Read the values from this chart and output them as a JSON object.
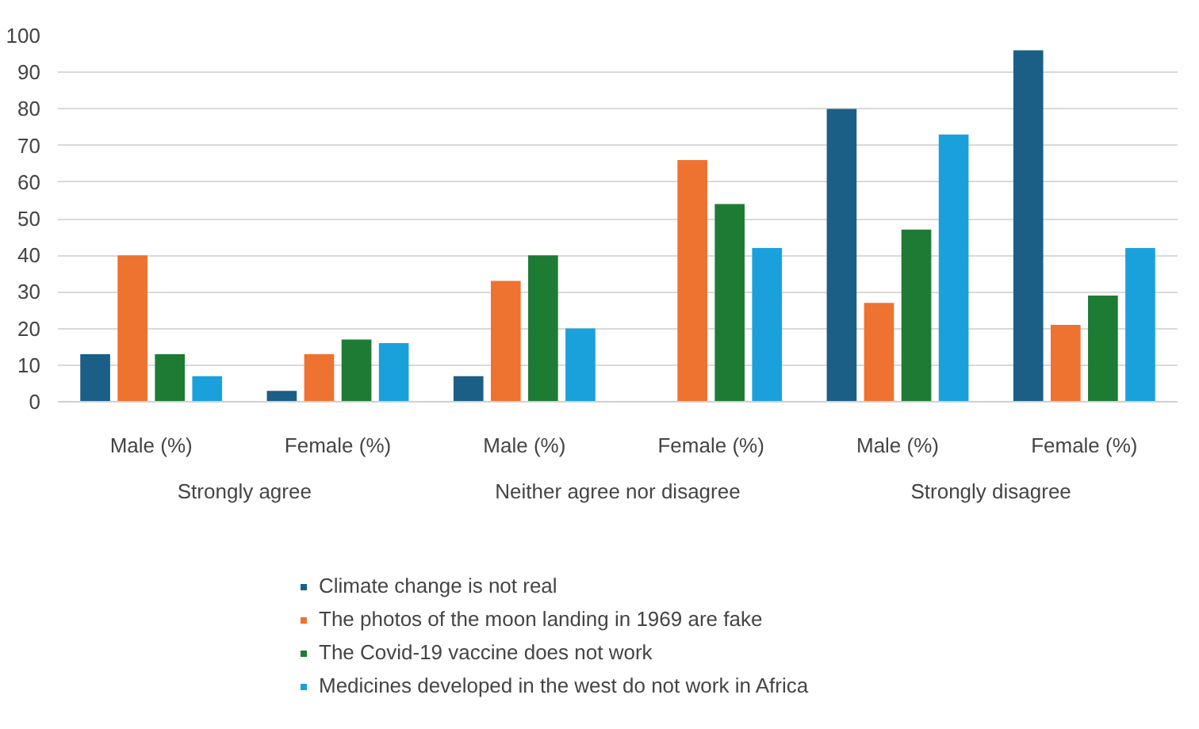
{
  "chart_data": {
    "type": "bar",
    "categories": [
      "Male (%)",
      "Female (%)",
      "Male (%)",
      "Female (%)",
      "Male (%)",
      "Female (%)"
    ],
    "annotations": [
      "Strongly agree",
      "Neither agree nor disagree",
      "Strongly disagree"
    ],
    "series": [
      {
        "name": "Climate change is not real",
        "color": "#1b5e86",
        "values": [
          13,
          3,
          7,
          0,
          80,
          96
        ]
      },
      {
        "name": "The photos of the moon landing in 1969 are fake",
        "color": "#ee7230",
        "values": [
          40,
          13,
          33,
          66,
          27,
          21
        ]
      },
      {
        "name": "The Covid-19 vaccine does not work",
        "color": "#1e7b34",
        "values": [
          13,
          17,
          40,
          54,
          47,
          29
        ]
      },
      {
        "name": "Medicines developed in the west do not work in Africa",
        "color": "#1aa1dc",
        "values": [
          7,
          16,
          20,
          42,
          73,
          42
        ]
      }
    ],
    "ylim": [
      0,
      100
    ],
    "yticks": [
      0,
      10,
      20,
      30,
      40,
      50,
      60,
      70,
      80,
      90,
      100
    ],
    "grid": "y",
    "legend": "bottom"
  }
}
